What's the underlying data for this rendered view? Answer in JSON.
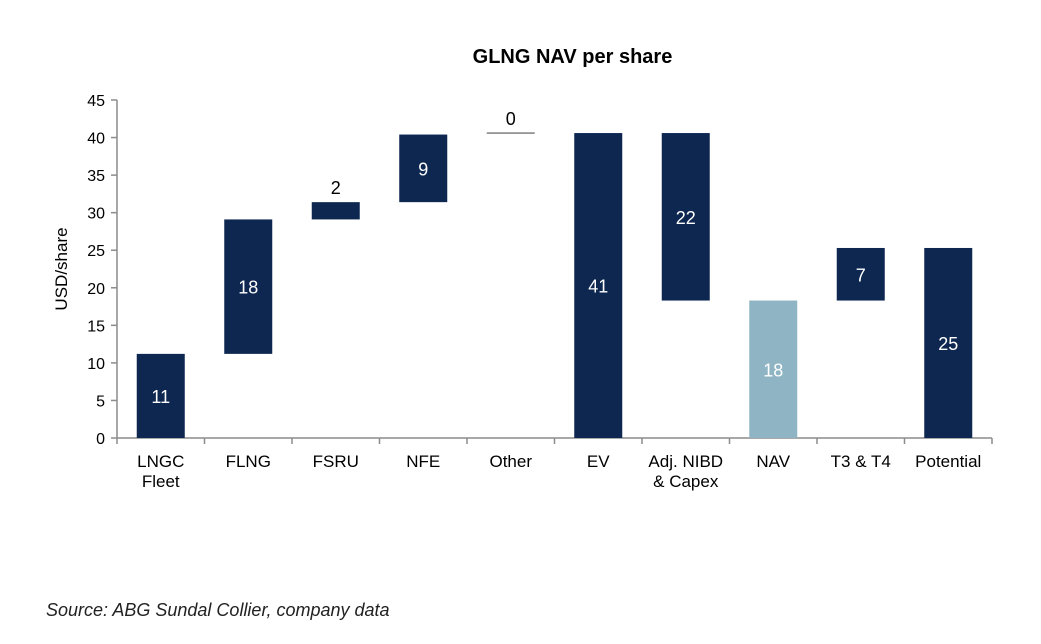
{
  "chart_data": {
    "type": "bar",
    "subtype": "waterfall",
    "title": "GLNG NAV per share",
    "xlabel": "",
    "ylabel": "USD/share",
    "ylim": [
      0,
      45
    ],
    "yticks": [
      0,
      5,
      10,
      15,
      20,
      25,
      30,
      35,
      40,
      45
    ],
    "grid": false,
    "legend": "none",
    "colors": {
      "dark": "#0d2750",
      "light": "#8fb5c5",
      "label_text": "#ffffff"
    },
    "categories": [
      "LNGC Fleet",
      "FLNG",
      "FSRU",
      "NFE",
      "Other",
      "EV",
      "Adj. NIBD & Capex",
      "NAV",
      "T3 & T4",
      "Potential"
    ],
    "category_lines": [
      [
        "LNGC",
        "Fleet"
      ],
      [
        "FLNG"
      ],
      [
        "FSRU"
      ],
      [
        "NFE"
      ],
      [
        "Other"
      ],
      [
        "EV"
      ],
      [
        "Adj. NIBD",
        "& Capex"
      ],
      [
        "NAV"
      ],
      [
        "T3 & T4"
      ],
      [
        "Potential"
      ]
    ],
    "bars": [
      {
        "category": "LNGC Fleet",
        "base": 0,
        "top": 11.2,
        "label": "11",
        "color": "dark"
      },
      {
        "category": "FLNG",
        "base": 11.2,
        "top": 29.1,
        "label": "18",
        "color": "dark"
      },
      {
        "category": "FSRU",
        "base": 29.1,
        "top": 31.4,
        "label": "2",
        "color": "dark",
        "label_outside": true
      },
      {
        "category": "NFE",
        "base": 31.4,
        "top": 40.4,
        "label": "9",
        "color": "dark"
      },
      {
        "category": "Other",
        "base": 40.4,
        "top": 40.6,
        "label": "0",
        "color": "line",
        "label_outside": true
      },
      {
        "category": "EV",
        "base": 0,
        "top": 40.6,
        "label": "41",
        "color": "dark"
      },
      {
        "category": "Adj. NIBD & Capex",
        "base": 18.3,
        "top": 40.6,
        "label": "22",
        "color": "dark"
      },
      {
        "category": "NAV",
        "base": 0,
        "top": 18.3,
        "label": "18",
        "color": "light"
      },
      {
        "category": "T3 & T4",
        "base": 18.3,
        "top": 25.3,
        "label": "7",
        "color": "dark"
      },
      {
        "category": "Potential",
        "base": 0,
        "top": 25.3,
        "label": "25",
        "color": "dark"
      }
    ]
  },
  "source": "Source: ABG Sundal Collier, company data"
}
